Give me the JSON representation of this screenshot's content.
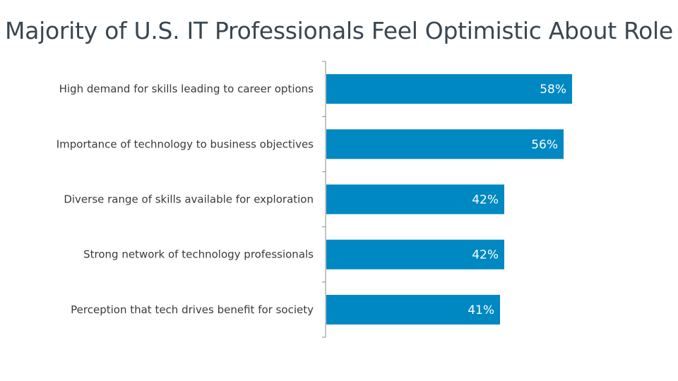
{
  "chart_data": {
    "type": "bar",
    "orientation": "horizontal",
    "title": "Majority of U.S. IT Professionals Feel Optimistic About Role",
    "categories": [
      "High demand for skills leading to career options",
      "Importance of technology to business objectives",
      "Diverse range of skills available for exploration",
      "Strong network of technology professionals",
      "Perception that tech drives benefit for society"
    ],
    "values": [
      58,
      56,
      42,
      42,
      41
    ],
    "value_labels": [
      "58%",
      "56%",
      "42%",
      "42%",
      "41%"
    ],
    "xlim": [
      0,
      100
    ],
    "bar_color": "#0088c2",
    "grid": false,
    "legend": "none"
  }
}
